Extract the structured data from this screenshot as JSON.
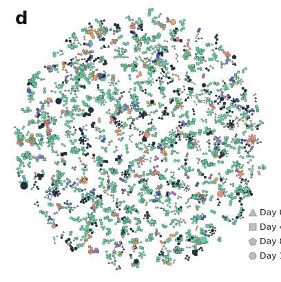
{
  "panel_label": "d",
  "colors": {
    "green": "#5fd3a0",
    "dark_navy": "#1f2d45",
    "blue": "#4f5fc7",
    "purple": "#a66fd6",
    "salmon": "#f08a78",
    "orange": "#f2a35c",
    "legend_gray": "#bdbdbd",
    "edge": "#333333"
  },
  "legend": [
    {
      "shape": "triangle-icon",
      "label": "Day 0"
    },
    {
      "shape": "square-icon",
      "label": "Day 4"
    },
    {
      "shape": "pentagon-icon",
      "label": "Day 8"
    },
    {
      "shape": "circle-icon",
      "label": "Day 1"
    }
  ]
}
